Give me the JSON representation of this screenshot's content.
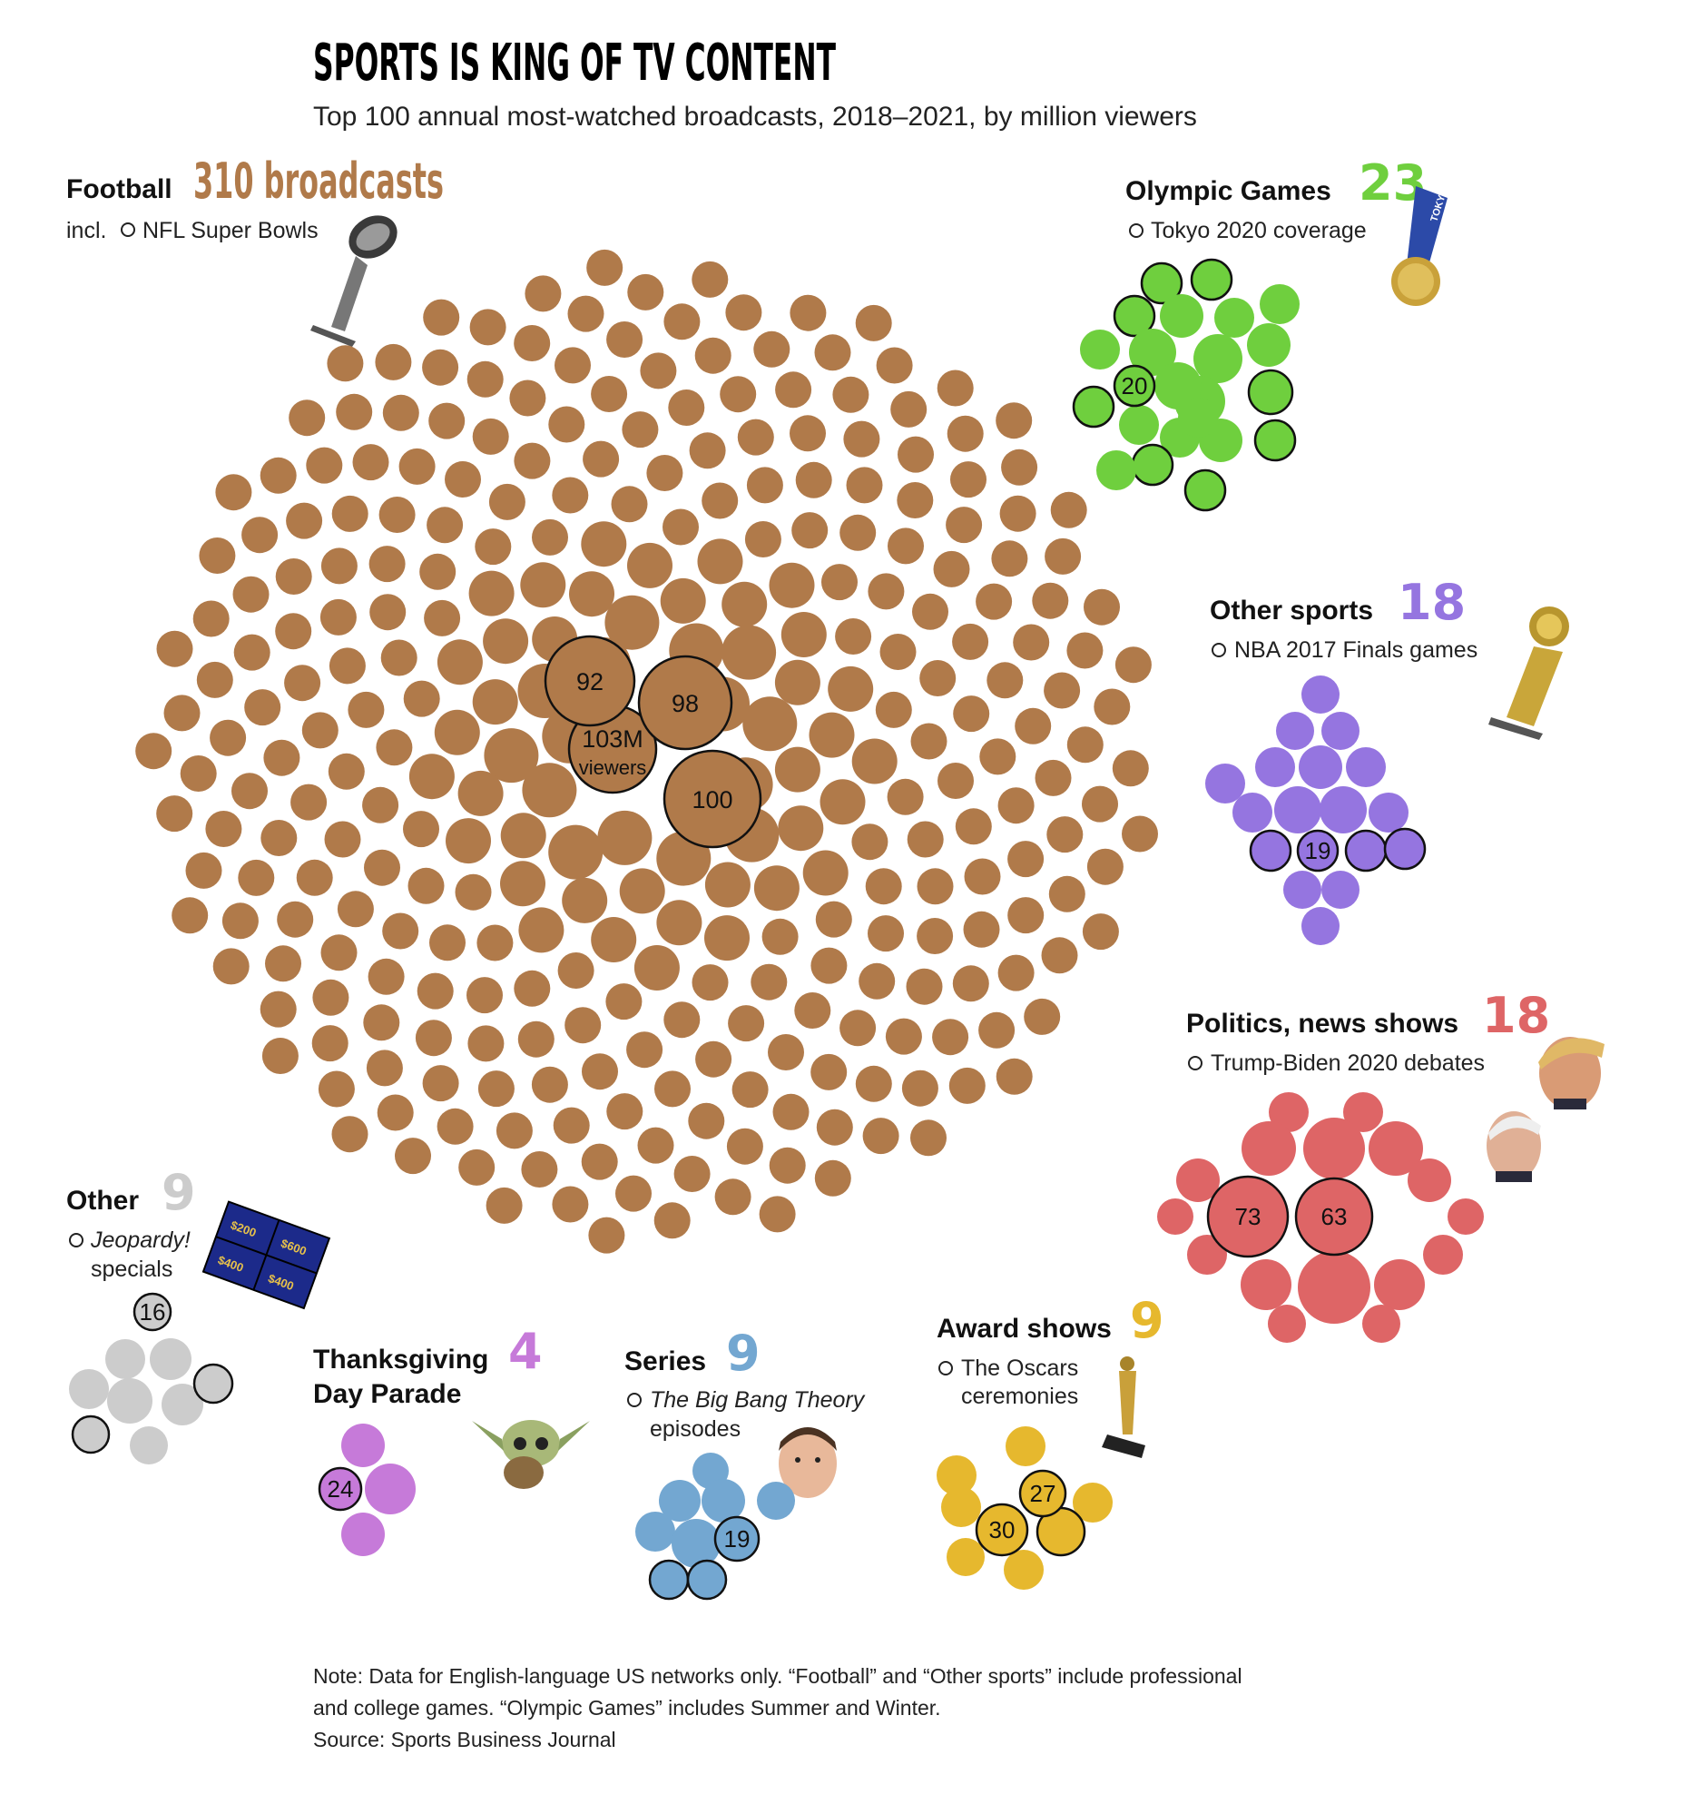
{
  "header": {
    "title": "SPORTS IS KING OF TV CONTENT",
    "subtitle": "Top 100 annual most-watched broadcasts, 2018–2021, by million viewers"
  },
  "chart_data": {
    "type": "bubble-cluster",
    "title": "SPORTS IS KING OF TV CONTENT",
    "subtitle": "Top 100 annual most-watched broadcasts, 2018–2021, by million viewers",
    "unit": "million viewers",
    "groups": [
      {
        "key": "football",
        "name": "Football",
        "count": 310,
        "count_label": "310 broadcasts",
        "color": "#b07a4a",
        "highlight": "NFL Super Bowls",
        "highlight_prefix": "incl.",
        "highlight_italic": false,
        "labeled_values": [
          {
            "label": "103M",
            "sublabel": "viewers",
            "value": 103
          },
          {
            "label": "100",
            "value": 100
          },
          {
            "label": "98",
            "value": 98
          },
          {
            "label": "92",
            "value": 92
          }
        ]
      },
      {
        "key": "olympic",
        "name": "Olympic Games",
        "count": 23,
        "count_label": "23",
        "color": "#6fcf3e",
        "highlight": "Tokyo 2020 coverage",
        "labeled_values": [
          {
            "label": "20",
            "value": 20
          }
        ]
      },
      {
        "key": "othersports",
        "name": "Other sports",
        "count": 18,
        "count_label": "18",
        "color": "#9575e0",
        "highlight": "NBA 2017 Finals games",
        "labeled_values": [
          {
            "label": "19",
            "value": 19
          }
        ]
      },
      {
        "key": "politics",
        "name": "Politics, news shows",
        "count": 18,
        "count_label": "18",
        "color": "#de6566",
        "highlight": "Trump-Biden 2020 debates",
        "labeled_values": [
          {
            "label": "73",
            "value": 73
          },
          {
            "label": "63",
            "value": 63
          }
        ]
      },
      {
        "key": "other",
        "name": "Other",
        "count": 9,
        "count_label": "9",
        "color": "#cccccc",
        "highlight": "Jeopardy!",
        "highlight_suffix": "specials",
        "highlight_italic": true,
        "labeled_values": [
          {
            "label": "16",
            "value": 16
          }
        ]
      },
      {
        "key": "thanksgiving",
        "name": "Thanksgiving Day Parade",
        "name_lines": [
          "Thanksgiving",
          "Day Parade"
        ],
        "count": 4,
        "count_label": "4",
        "color": "#c67ad9",
        "labeled_values": [
          {
            "label": "24",
            "value": 24
          }
        ]
      },
      {
        "key": "series",
        "name": "Series",
        "count": 9,
        "count_label": "9",
        "color": "#73a7d1",
        "highlight": "The Big Bang Theory",
        "highlight_suffix": "episodes",
        "highlight_italic": true,
        "labeled_values": [
          {
            "label": "19",
            "value": 19
          }
        ]
      },
      {
        "key": "awards",
        "name": "Award shows",
        "count": 9,
        "count_label": "9",
        "color": "#e6b82e",
        "highlight": "The Oscars",
        "highlight_suffix": "ceremonies",
        "labeled_values": [
          {
            "label": "27",
            "value": 27
          },
          {
            "label": "30",
            "value": 30
          }
        ]
      }
    ]
  },
  "jeopardy_board": [
    "$200",
    "$400",
    "$400",
    "$600"
  ],
  "olympic_ribbon": "TOKYO",
  "footer": {
    "note_line1": "Note: Data for English-language US networks only. “Football” and “Other sports” include professional",
    "note_line2": "and college games. “Olympic Games” includes Summer and Winter.",
    "source": "Source: Sports Business Journal"
  },
  "colors": {
    "football": "#b07a4a",
    "olympic": "#6fcf3e",
    "othersports": "#9575e0",
    "politics": "#de6566",
    "other": "#cccccc",
    "thanksgiving": "#c67ad9",
    "series": "#73a7d1",
    "awards": "#e6b82e"
  }
}
